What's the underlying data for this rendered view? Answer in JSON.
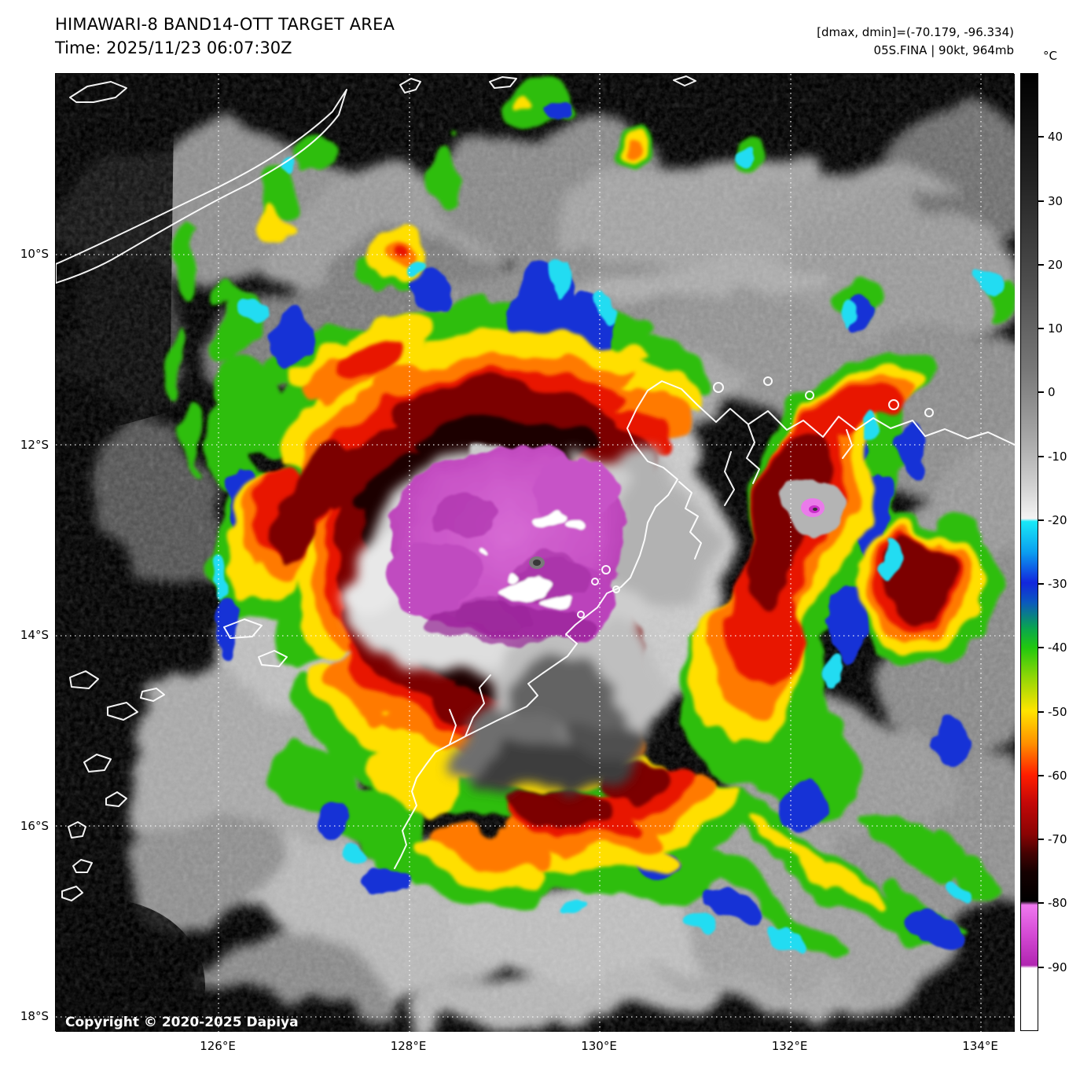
{
  "header": {
    "title_line1": "HIMAWARI-8 BAND14-OTT TARGET AREA",
    "title_line2": "Time: 2025/11/23 06:07:30Z",
    "info_line1": "[dmax, dmin]=(-70.179, -96.334)",
    "info_line2": "05S.FINA | 90kt, 964mb"
  },
  "axes": {
    "lat_labels": [
      "10°S",
      "12°S",
      "14°S",
      "16°S",
      "18°S"
    ],
    "lon_labels": [
      "126°E",
      "128°E",
      "130°E",
      "132°E",
      "134°E"
    ]
  },
  "colorbar": {
    "unit": "°C",
    "tick_labels": [
      "40",
      "30",
      "20",
      "10",
      "0",
      "-10",
      "-20",
      "-30",
      "-40",
      "-50",
      "-60",
      "-70",
      "-80",
      "-90"
    ],
    "scale_top_c": 50,
    "scale_bottom_c": -100,
    "key_colors": {
      "warm_grayscale_start": "#000000",
      "cold_gray_end": "#f4f4f4",
      "cyan_-20": "#19e9f7",
      "blue_-30": "#1226dd",
      "green_-40": "#21c80f",
      "yellow_-50": "#ffe400",
      "red_-60": "#ff1e00",
      "darkred_-70": "#8a0404",
      "magenta_-80_-90": "#d44ad4",
      "white_below_-90": "#ffffff"
    }
  },
  "map": {
    "copyright": "Copyright © 2020-2025 Dapiya"
  }
}
